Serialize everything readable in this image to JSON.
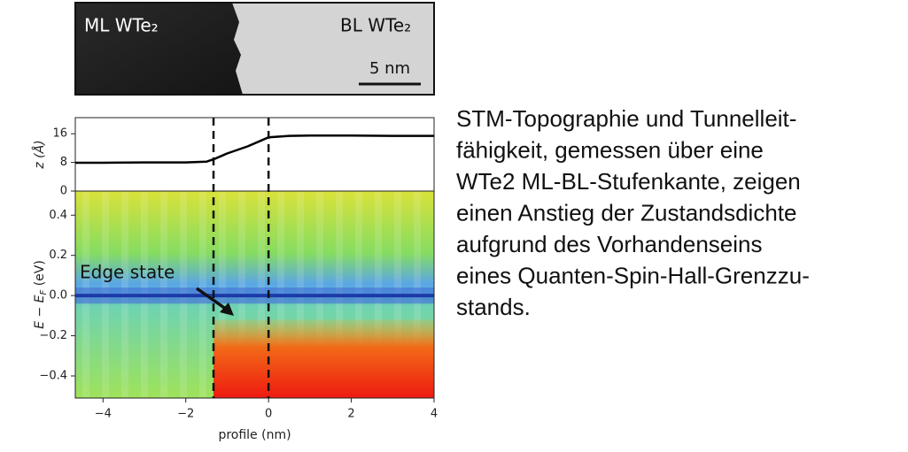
{
  "stm_image": {
    "left_label": "ML WTe₂",
    "right_label": "BL WTe₂",
    "scale_bar": "5 nm"
  },
  "chart_data": [
    {
      "type": "line",
      "ylabel": "z (Å)",
      "x": [
        -4.67,
        -4,
        -3,
        -2,
        -1.5,
        -1.3,
        -1,
        -0.5,
        -0.2,
        0,
        0.5,
        1,
        2,
        3,
        4
      ],
      "values": [
        7.9,
        7.9,
        8,
        8,
        8.2,
        9,
        10.5,
        12.5,
        14,
        15,
        15.4,
        15.5,
        15.5,
        15.4,
        15.4
      ],
      "color": "#000000",
      "xlim": [
        -4.67,
        4
      ],
      "ylim": [
        0,
        20.5
      ],
      "yticks": [
        0,
        8,
        16
      ],
      "vlines": [
        -1.33,
        0
      ]
    },
    {
      "type": "heatmap",
      "xlabel": "profile (nm)",
      "ylabel": {
        "text": "E − E",
        "subscript": "F",
        "unit": " (eV)"
      },
      "annotation": "Edge state",
      "xlim": [
        -4.67,
        4
      ],
      "ylim": [
        -0.51,
        0.52
      ],
      "xticks": [
        {
          "value": -4,
          "label": "−4"
        },
        {
          "value": -2,
          "label": "−2"
        },
        0,
        2,
        4
      ],
      "yticks": [
        {
          "value": -0.4,
          "label": "−0.4"
        },
        {
          "value": -0.2,
          "label": "−0.2"
        },
        {
          "value": 0,
          "label": "0.0"
        },
        0.2,
        0.4
      ]
    }
  ],
  "caption": [
    "STM-Topographie und Tunnelleit-",
    "fähigkeit, gemessen über eine",
    "WTe2 ML-BL-Stufenkante, zeigen",
    "einen Anstieg der Zustandsdichte",
    "aufgrund des Vorhandenseins",
    "eines Quanten-Spin-Hall-Grenzzu-",
    "stands."
  ]
}
